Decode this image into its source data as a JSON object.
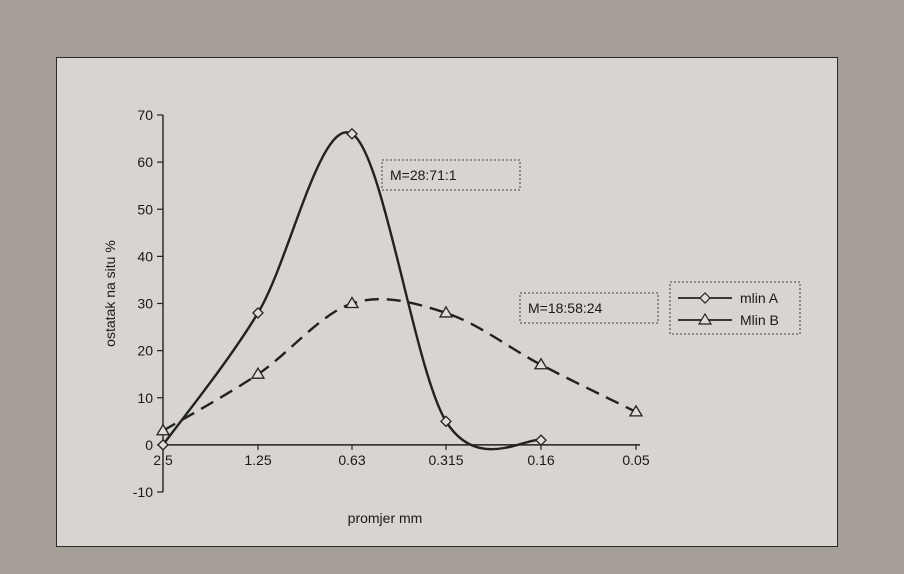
{
  "chart_data": {
    "type": "line",
    "title": "",
    "xlabel": "promjer mm",
    "ylabel": "ostatak na situ %",
    "categories": [
      "2.5",
      "1.25",
      "0.63",
      "0.315",
      "0.16",
      "0.05"
    ],
    "ylim": [
      -10,
      70
    ],
    "yticks": [
      -10,
      0,
      10,
      20,
      30,
      40,
      50,
      60,
      70
    ],
    "series": [
      {
        "name": "mlin A",
        "marker": "diamond",
        "line": "solid",
        "color": "#222222",
        "values": [
          0,
          28,
          66,
          5,
          1,
          null
        ]
      },
      {
        "name": "Mlin B",
        "marker": "triangle",
        "line": "dashed",
        "color": "#222222",
        "values": [
          3,
          15,
          30,
          28,
          17,
          7
        ]
      }
    ],
    "annotations": [
      {
        "text": "M=28:71:1"
      },
      {
        "text": "M=18:58:24"
      }
    ],
    "legend": "right",
    "grid": false
  }
}
